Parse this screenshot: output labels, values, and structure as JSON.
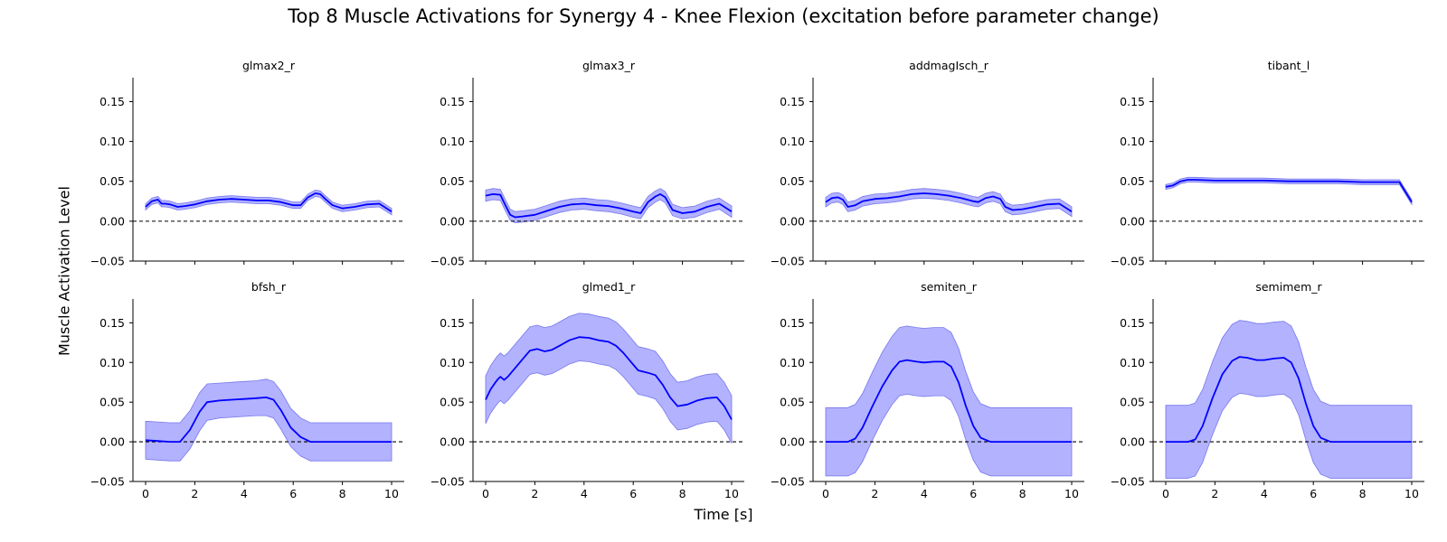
{
  "figure": {
    "title": "Top 8 Muscle Activations for Synergy 4 - Knee Flexion (excitation before parameter change)",
    "ylabel": "Muscle Activation Level",
    "xlabel": "Time [s]",
    "colors": {
      "line": "#0000ff",
      "band": "#aaaaff",
      "zero_line": "#000000"
    }
  },
  "chart_data": [
    {
      "type": "line",
      "title": "glmax2_r",
      "xlim": [
        0,
        10
      ],
      "ylim": [
        -0.05,
        0.18
      ],
      "xticks": [
        0,
        2,
        4,
        6,
        8,
        10
      ],
      "yticks": [
        -0.05,
        0.0,
        0.05,
        0.1,
        0.15
      ],
      "reference_line": 0,
      "x": [
        0,
        0.25,
        0.5,
        0.65,
        0.8,
        1.0,
        1.3,
        1.6,
        2.0,
        2.5,
        3.0,
        3.5,
        4.0,
        4.5,
        5.0,
        5.5,
        6.0,
        6.3,
        6.6,
        6.9,
        7.1,
        7.3,
        7.6,
        8.0,
        8.5,
        9.0,
        9.5,
        10.0
      ],
      "mean": [
        0.018,
        0.025,
        0.027,
        0.022,
        0.022,
        0.021,
        0.018,
        0.019,
        0.021,
        0.025,
        0.027,
        0.028,
        0.027,
        0.026,
        0.026,
        0.024,
        0.02,
        0.02,
        0.03,
        0.035,
        0.034,
        0.028,
        0.02,
        0.016,
        0.018,
        0.021,
        0.022,
        0.012
      ],
      "band": 0.004
    },
    {
      "type": "line",
      "title": "glmax3_r",
      "xlim": [
        0,
        10
      ],
      "ylim": [
        -0.05,
        0.18
      ],
      "xticks": [
        0,
        2,
        4,
        6,
        8,
        10
      ],
      "yticks": [
        -0.05,
        0.0,
        0.05,
        0.1,
        0.15
      ],
      "reference_line": 0,
      "x": [
        0,
        0.3,
        0.6,
        0.8,
        1.0,
        1.2,
        1.5,
        2.0,
        2.5,
        3.0,
        3.5,
        4.0,
        4.5,
        5.0,
        5.5,
        6.0,
        6.3,
        6.6,
        6.9,
        7.1,
        7.3,
        7.6,
        8.0,
        8.5,
        9.0,
        9.5,
        10.0
      ],
      "mean": [
        0.032,
        0.034,
        0.033,
        0.02,
        0.008,
        0.005,
        0.006,
        0.008,
        0.013,
        0.018,
        0.021,
        0.022,
        0.02,
        0.019,
        0.016,
        0.012,
        0.01,
        0.024,
        0.031,
        0.034,
        0.03,
        0.014,
        0.01,
        0.012,
        0.018,
        0.022,
        0.012
      ],
      "band": 0.007
    },
    {
      "type": "line",
      "title": "addmagIsch_r",
      "xlim": [
        0,
        10
      ],
      "ylim": [
        -0.05,
        0.18
      ],
      "xticks": [
        0,
        2,
        4,
        6,
        8,
        10
      ],
      "yticks": [
        -0.05,
        0.0,
        0.05,
        0.1,
        0.15
      ],
      "reference_line": 0,
      "x": [
        0,
        0.25,
        0.5,
        0.7,
        0.9,
        1.2,
        1.5,
        2.0,
        2.5,
        3.0,
        3.5,
        4.0,
        4.5,
        5.0,
        5.5,
        6.0,
        6.2,
        6.5,
        6.8,
        7.1,
        7.3,
        7.6,
        8.0,
        8.5,
        9.0,
        9.5,
        10.0
      ],
      "mean": [
        0.024,
        0.029,
        0.03,
        0.027,
        0.018,
        0.02,
        0.025,
        0.028,
        0.029,
        0.031,
        0.034,
        0.035,
        0.034,
        0.032,
        0.029,
        0.025,
        0.024,
        0.029,
        0.031,
        0.028,
        0.018,
        0.014,
        0.015,
        0.018,
        0.021,
        0.022,
        0.012
      ],
      "band": 0.006
    },
    {
      "type": "line",
      "title": "tibant_l",
      "xlim": [
        0,
        10
      ],
      "ylim": [
        -0.05,
        0.18
      ],
      "xticks": [
        0,
        2,
        4,
        6,
        8,
        10
      ],
      "yticks": [
        -0.05,
        0.0,
        0.05,
        0.1,
        0.15
      ],
      "reference_line": 0,
      "x": [
        0,
        0.3,
        0.6,
        0.9,
        1.2,
        2.0,
        3.0,
        4.0,
        5.0,
        6.0,
        7.0,
        8.0,
        9.0,
        9.5,
        10.0
      ],
      "mean": [
        0.043,
        0.045,
        0.05,
        0.052,
        0.052,
        0.051,
        0.051,
        0.051,
        0.05,
        0.05,
        0.05,
        0.049,
        0.049,
        0.049,
        0.024
      ],
      "band": 0.003
    },
    {
      "type": "line",
      "title": "bfsh_r",
      "xlim": [
        0,
        10
      ],
      "ylim": [
        -0.05,
        0.18
      ],
      "xticks": [
        0,
        2,
        4,
        6,
        8,
        10
      ],
      "yticks": [
        -0.05,
        0.0,
        0.05,
        0.1,
        0.15
      ],
      "reference_line": 0,
      "x": [
        0,
        0.5,
        1.0,
        1.4,
        1.8,
        2.2,
        2.5,
        3.0,
        3.5,
        4.0,
        4.5,
        4.9,
        5.2,
        5.5,
        5.9,
        6.3,
        6.7,
        7.2,
        8.0,
        9.0,
        10.0
      ],
      "mean": [
        0.002,
        0.001,
        0.0,
        0.0,
        0.015,
        0.038,
        0.05,
        0.052,
        0.053,
        0.054,
        0.055,
        0.056,
        0.053,
        0.04,
        0.018,
        0.006,
        0.0,
        0.0,
        0.0,
        0.0,
        0.0
      ],
      "band": [
        0.024,
        0.024,
        0.024,
        0.024,
        0.024,
        0.024,
        0.023,
        0.022,
        0.022,
        0.022,
        0.022,
        0.023,
        0.023,
        0.024,
        0.024,
        0.024,
        0.024,
        0.024,
        0.024,
        0.024,
        0.024
      ]
    },
    {
      "type": "line",
      "title": "glmed1_r",
      "xlim": [
        0,
        10
      ],
      "ylim": [
        -0.05,
        0.18
      ],
      "xticks": [
        0,
        2,
        4,
        6,
        8,
        10
      ],
      "yticks": [
        -0.05,
        0.0,
        0.05,
        0.1,
        0.15
      ],
      "reference_line": 0,
      "x": [
        0,
        0.2,
        0.4,
        0.5,
        0.6,
        0.75,
        0.9,
        1.2,
        1.5,
        1.8,
        2.1,
        2.4,
        2.7,
        3.0,
        3.4,
        3.8,
        4.2,
        4.6,
        5.0,
        5.3,
        5.6,
        5.9,
        6.2,
        6.6,
        6.9,
        7.2,
        7.5,
        7.8,
        8.2,
        8.6,
        9.0,
        9.4,
        9.7,
        10.0
      ],
      "mean": [
        0.053,
        0.066,
        0.075,
        0.079,
        0.082,
        0.078,
        0.082,
        0.093,
        0.104,
        0.115,
        0.117,
        0.114,
        0.116,
        0.121,
        0.128,
        0.132,
        0.131,
        0.128,
        0.126,
        0.121,
        0.112,
        0.101,
        0.09,
        0.087,
        0.084,
        0.072,
        0.056,
        0.045,
        0.047,
        0.052,
        0.055,
        0.056,
        0.045,
        0.028
      ],
      "band": 0.03
    },
    {
      "type": "line",
      "title": "semiten_r",
      "xlim": [
        0,
        10
      ],
      "ylim": [
        -0.05,
        0.18
      ],
      "xticks": [
        0,
        2,
        4,
        6,
        8,
        10
      ],
      "yticks": [
        -0.05,
        0.0,
        0.05,
        0.1,
        0.15
      ],
      "reference_line": 0,
      "x": [
        0,
        0.5,
        0.9,
        1.2,
        1.5,
        1.9,
        2.3,
        2.7,
        3.0,
        3.3,
        3.7,
        4.0,
        4.4,
        4.8,
        5.1,
        5.4,
        5.7,
        6.0,
        6.3,
        6.7,
        7.0,
        8.0,
        9.0,
        10.0
      ],
      "mean": [
        0.0,
        0.0,
        0.0,
        0.004,
        0.018,
        0.045,
        0.07,
        0.09,
        0.101,
        0.103,
        0.101,
        0.1,
        0.101,
        0.101,
        0.095,
        0.075,
        0.045,
        0.02,
        0.005,
        0.0,
        0.0,
        0.0,
        0.0,
        0.0
      ],
      "band": [
        0.043,
        0.043,
        0.043,
        0.043,
        0.043,
        0.043,
        0.043,
        0.043,
        0.043,
        0.043,
        0.043,
        0.043,
        0.043,
        0.043,
        0.043,
        0.043,
        0.043,
        0.043,
        0.043,
        0.043,
        0.043,
        0.043,
        0.043,
        0.043
      ]
    },
    {
      "type": "line",
      "title": "semimem_r",
      "xlim": [
        0,
        10
      ],
      "ylim": [
        -0.05,
        0.18
      ],
      "xticks": [
        0,
        2,
        4,
        6,
        8,
        10
      ],
      "yticks": [
        -0.05,
        0.0,
        0.05,
        0.1,
        0.15
      ],
      "reference_line": 0,
      "x": [
        0,
        0.5,
        0.9,
        1.2,
        1.5,
        1.9,
        2.3,
        2.7,
        3.0,
        3.3,
        3.7,
        4.0,
        4.4,
        4.8,
        5.1,
        5.4,
        5.7,
        6.0,
        6.3,
        6.7,
        7.0,
        8.0,
        9.0,
        10.0
      ],
      "mean": [
        0.0,
        0.0,
        0.0,
        0.003,
        0.02,
        0.055,
        0.085,
        0.102,
        0.107,
        0.106,
        0.103,
        0.103,
        0.105,
        0.106,
        0.1,
        0.08,
        0.048,
        0.02,
        0.005,
        0.0,
        0.0,
        0.0,
        0.0,
        0.0
      ],
      "band": [
        0.046,
        0.046,
        0.046,
        0.046,
        0.046,
        0.046,
        0.046,
        0.046,
        0.046,
        0.046,
        0.046,
        0.046,
        0.046,
        0.046,
        0.046,
        0.046,
        0.046,
        0.046,
        0.046,
        0.046,
        0.046,
        0.046,
        0.046,
        0.046
      ]
    }
  ]
}
